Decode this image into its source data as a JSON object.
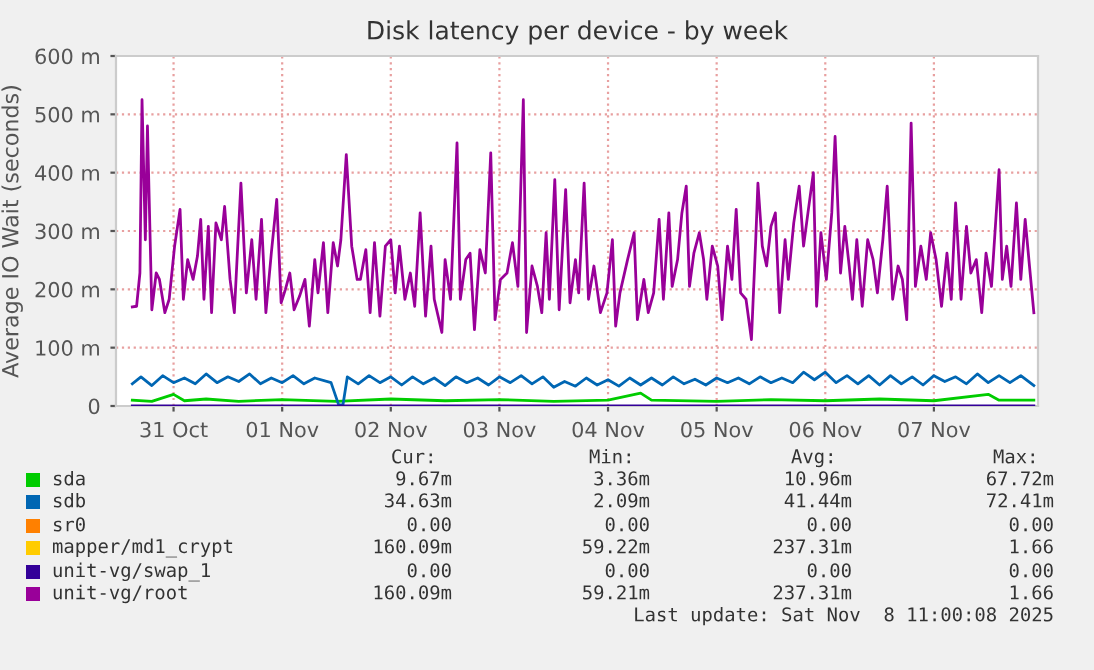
{
  "chart_data": {
    "type": "line",
    "title": "Disk latency per device - by week",
    "ylabel": "Average IO Wait (seconds)",
    "xlim": [
      "2025-10-30T23:17",
      "2025-11-08T11:00"
    ],
    "xticks": [
      {
        "value": "2025-10-31T12:00",
        "label": "31 Oct"
      },
      {
        "value": "2025-11-01T12:00",
        "label": "01 Nov"
      },
      {
        "value": "2025-11-02T12:00",
        "label": "02 Nov"
      },
      {
        "value": "2025-11-03T12:00",
        "label": "03 Nov"
      },
      {
        "value": "2025-11-04T12:00",
        "label": "04 Nov"
      },
      {
        "value": "2025-11-05T12:00",
        "label": "05 Nov"
      },
      {
        "value": "2025-11-06T12:00",
        "label": "06 Nov"
      },
      {
        "value": "2025-11-07T12:00",
        "label": "07 Nov"
      }
    ],
    "ylim": [
      0,
      600
    ],
    "yticks": [
      0,
      {
        "value": 100,
        "label": "100 m"
      },
      {
        "value": 200,
        "label": "200 m"
      },
      {
        "value": 300,
        "label": "300 m"
      },
      {
        "value": 400,
        "label": "400 m"
      },
      {
        "value": 500,
        "label": "500 m"
      },
      {
        "value": 600,
        "label": "600 m"
      }
    ],
    "grid": true,
    "legend": "bottom",
    "marker": "none",
    "line_style": "solid",
    "series": [
      {
        "name": "sda",
        "color": "#00cc00",
        "x": [
          "2025-10-31T02:53",
          "2025-10-31T07:12",
          "2025-10-31T12:00",
          "2025-10-31T14:24",
          "2025-10-31T19:12",
          "2025-11-01T02:24",
          "2025-11-01T12:00",
          "2025-11-02T00:00",
          "2025-11-02T12:00",
          "2025-11-03T00:00",
          "2025-11-03T12:00",
          "2025-11-04T00:00",
          "2025-11-04T12:00",
          "2025-11-04T19:12",
          "2025-11-04T21:36",
          "2025-11-05T12:00",
          "2025-11-06T00:00",
          "2025-11-06T12:00",
          "2025-11-07T00:00",
          "2025-11-07T12:00",
          "2025-11-08T00:00",
          "2025-11-08T02:24",
          "2025-11-08T10:05"
        ],
        "values": [
          10,
          8,
          20,
          9,
          12,
          8,
          11,
          8,
          12,
          9,
          11,
          8,
          10,
          22,
          10,
          8,
          11,
          9,
          12,
          9,
          20,
          10,
          10
        ]
      },
      {
        "name": "sdb",
        "color": "#0066b3",
        "x": [
          "2025-10-31T02:53",
          "2025-10-31T04:48",
          "2025-10-31T07:12",
          "2025-10-31T09:36",
          "2025-10-31T12:00",
          "2025-10-31T14:24",
          "2025-10-31T16:48",
          "2025-10-31T19:12",
          "2025-10-31T21:36",
          "2025-11-01T00:00",
          "2025-11-01T02:24",
          "2025-11-01T04:48",
          "2025-11-01T07:12",
          "2025-11-01T09:36",
          "2025-11-01T12:00",
          "2025-11-01T14:24",
          "2025-11-01T16:48",
          "2025-11-01T19:12",
          "2025-11-01T22:48",
          "2025-11-02T00:29",
          "2025-11-02T01:26",
          "2025-11-02T02:24",
          "2025-11-02T04:48",
          "2025-11-02T07:12",
          "2025-11-02T09:36",
          "2025-11-02T12:00",
          "2025-11-02T14:24",
          "2025-11-02T16:48",
          "2025-11-02T19:12",
          "2025-11-02T21:36",
          "2025-11-03T00:00",
          "2025-11-03T02:24",
          "2025-11-03T04:48",
          "2025-11-03T07:12",
          "2025-11-03T09:36",
          "2025-11-03T12:00",
          "2025-11-03T14:24",
          "2025-11-03T16:48",
          "2025-11-03T19:12",
          "2025-11-03T21:36",
          "2025-11-04T00:00",
          "2025-11-04T02:24",
          "2025-11-04T04:48",
          "2025-11-04T07:12",
          "2025-11-04T09:36",
          "2025-11-04T12:00",
          "2025-11-04T14:24",
          "2025-11-04T16:48",
          "2025-11-04T19:12",
          "2025-11-04T21:36",
          "2025-11-05T00:00",
          "2025-11-05T02:24",
          "2025-11-05T04:48",
          "2025-11-05T07:12",
          "2025-11-05T09:36",
          "2025-11-05T12:00",
          "2025-11-05T14:24",
          "2025-11-05T16:48",
          "2025-11-05T19:12",
          "2025-11-05T21:36",
          "2025-11-06T00:00",
          "2025-11-06T02:24",
          "2025-11-06T04:48",
          "2025-11-06T07:12",
          "2025-11-06T09:36",
          "2025-11-06T12:00",
          "2025-11-06T14:24",
          "2025-11-06T16:48",
          "2025-11-06T19:12",
          "2025-11-06T21:36",
          "2025-11-07T00:00",
          "2025-11-07T02:24",
          "2025-11-07T04:48",
          "2025-11-07T07:12",
          "2025-11-07T09:36",
          "2025-11-07T12:00",
          "2025-11-07T14:24",
          "2025-11-07T16:48",
          "2025-11-07T19:12",
          "2025-11-07T21:36",
          "2025-11-08T00:00",
          "2025-11-08T02:24",
          "2025-11-08T04:48",
          "2025-11-08T07:12",
          "2025-11-08T10:05"
        ],
        "values": [
          38,
          50,
          35,
          52,
          40,
          48,
          38,
          55,
          40,
          50,
          42,
          55,
          38,
          48,
          40,
          52,
          38,
          48,
          40,
          2,
          2,
          50,
          38,
          52,
          40,
          50,
          36,
          50,
          38,
          48,
          35,
          50,
          40,
          48,
          36,
          50,
          40,
          52,
          38,
          50,
          32,
          42,
          34,
          48,
          36,
          45,
          34,
          48,
          36,
          48,
          36,
          50,
          38,
          46,
          36,
          48,
          40,
          48,
          38,
          50,
          40,
          48,
          40,
          58,
          45,
          58,
          40,
          52,
          38,
          52,
          36,
          52,
          38,
          50,
          36,
          52,
          42,
          50,
          38,
          55,
          40,
          52,
          40,
          52,
          35
        ]
      },
      {
        "name": "sr0",
        "color": "#ff8000"
      },
      {
        "name": "mapper/md1_crypt",
        "color": "#ffcc00"
      },
      {
        "name": "unit-vg/swap_1",
        "color": "#330099",
        "x": [
          "2025-10-31T02:53",
          "2025-11-08T10:05"
        ],
        "values": [
          0,
          0
        ]
      },
      {
        "name": "unit-vg/root",
        "color": "#990099",
        "x": [
          "2025-10-31T02:53",
          "2025-10-31T03:50",
          "2025-10-31T04:34",
          "2025-10-31T05:02",
          "2025-10-31T05:46",
          "2025-10-31T06:14",
          "2025-10-31T07:12",
          "2025-10-31T08:10",
          "2025-10-31T08:53",
          "2025-10-31T10:05",
          "2025-10-31T11:02",
          "2025-10-31T12:14",
          "2025-10-31T13:26",
          "2025-10-31T14:10",
          "2025-10-31T15:07",
          "2025-10-31T16:19",
          "2025-10-31T17:17",
          "2025-10-31T18:00",
          "2025-10-31T18:43",
          "2025-10-31T19:41",
          "2025-10-31T20:24",
          "2025-10-31T21:22",
          "2025-10-31T22:34",
          "2025-10-31T23:17",
          "2025-11-01T00:29",
          "2025-11-01T01:26",
          "2025-11-01T02:53",
          "2025-11-01T04:05",
          "2025-11-01T05:17",
          "2025-11-01T06:14",
          "2025-11-01T07:26",
          "2025-11-01T08:24",
          "2025-11-01T09:36",
          "2025-11-01T10:48",
          "2025-11-01T11:46",
          "2025-11-01T12:43",
          "2025-11-01T13:41",
          "2025-11-01T14:38",
          "2025-11-01T15:50",
          "2025-11-01T17:02",
          "2025-11-01T18:00",
          "2025-11-01T19:12",
          "2025-11-01T19:55",
          "2025-11-01T21:07",
          "2025-11-01T22:05",
          "2025-11-01T23:17",
          "2025-11-02T00:14",
          "2025-11-02T00:58",
          "2025-11-02T02:10",
          "2025-11-02T03:22",
          "2025-11-02T04:34",
          "2025-11-02T05:17",
          "2025-11-02T06:29",
          "2025-11-02T07:26",
          "2025-11-02T08:24",
          "2025-11-02T09:36",
          "2025-11-02T10:48",
          "2025-11-02T12:00",
          "2025-11-02T12:58",
          "2025-11-02T13:55",
          "2025-11-02T15:07",
          "2025-11-02T16:19",
          "2025-11-02T17:17",
          "2025-11-02T18:29",
          "2025-11-02T19:41",
          "2025-11-02T20:53",
          "2025-11-02T21:36",
          "2025-11-02T23:17",
          "2025-11-03T00:00",
          "2025-11-03T01:12",
          "2025-11-03T02:38",
          "2025-11-03T03:22",
          "2025-11-03T04:34",
          "2025-11-03T05:31",
          "2025-11-03T06:29",
          "2025-11-03T07:41",
          "2025-11-03T08:53",
          "2025-11-03T10:05",
          "2025-11-03T11:02",
          "2025-11-03T12:14",
          "2025-11-03T13:41",
          "2025-11-03T14:53",
          "2025-11-03T16:05",
          "2025-11-03T17:17",
          "2025-11-03T18:00",
          "2025-11-03T19:12",
          "2025-11-03T20:24",
          "2025-11-03T21:22",
          "2025-11-03T22:19",
          "2025-11-03T23:02",
          "2025-11-04T00:14",
          "2025-11-04T01:12",
          "2025-11-04T02:38",
          "2025-11-04T03:36",
          "2025-11-04T04:48",
          "2025-11-04T05:31",
          "2025-11-04T06:43",
          "2025-11-04T07:41",
          "2025-11-04T08:53",
          "2025-11-04T10:19",
          "2025-11-04T11:46",
          "2025-11-04T12:58",
          "2025-11-04T13:41",
          "2025-11-04T14:38",
          "2025-11-04T16:19",
          "2025-11-04T17:46",
          "2025-11-04T18:29",
          "2025-11-04T19:55",
          "2025-11-04T20:53",
          "2025-11-04T22:05",
          "2025-11-04T23:17",
          "2025-11-05T00:14",
          "2025-11-05T01:26",
          "2025-11-05T02:10",
          "2025-11-05T03:22",
          "2025-11-05T04:19",
          "2025-11-05T05:17",
          "2025-11-05T06:00",
          "2025-11-05T06:58",
          "2025-11-05T08:10",
          "2025-11-05T09:07",
          "2025-11-05T09:50",
          "2025-11-05T11:02",
          "2025-11-05T12:14",
          "2025-11-05T13:12",
          "2025-11-05T14:24",
          "2025-11-05T15:22",
          "2025-11-05T16:19",
          "2025-11-05T17:17",
          "2025-11-05T18:29",
          "2025-11-05T19:41",
          "2025-11-05T20:38",
          "2025-11-05T21:07",
          "2025-11-05T22:05",
          "2025-11-05T23:02",
          "2025-11-06T00:00",
          "2025-11-06T00:58",
          "2025-11-06T01:55",
          "2025-11-06T03:07",
          "2025-11-06T03:50",
          "2025-11-06T05:02",
          "2025-11-06T06:14",
          "2025-11-06T07:12",
          "2025-11-06T08:10",
          "2025-11-06T09:22",
          "2025-11-06T10:05",
          "2025-11-06T11:02",
          "2025-11-06T12:14",
          "2025-11-06T13:26",
          "2025-11-06T14:10",
          "2025-11-06T15:22",
          "2025-11-06T16:19",
          "2025-11-06T17:17",
          "2025-11-06T18:00",
          "2025-11-06T18:58",
          "2025-11-06T20:10",
          "2025-11-06T21:22",
          "2025-11-06T22:34",
          "2025-11-06T23:31",
          "2025-11-07T00:43",
          "2025-11-07T01:41",
          "2025-11-07T02:53",
          "2025-11-07T04:05",
          "2025-11-07T05:02",
          "2025-11-07T06:00",
          "2025-11-07T06:58",
          "2025-11-07T07:55",
          "2025-11-07T09:07",
          "2025-11-07T10:19",
          "2025-11-07T11:17",
          "2025-11-07T12:29",
          "2025-11-07T13:41",
          "2025-11-07T14:53",
          "2025-11-07T15:50",
          "2025-11-07T16:48",
          "2025-11-07T18:00",
          "2025-11-07T19:12",
          "2025-11-07T20:10",
          "2025-11-07T21:22",
          "2025-11-07T22:34",
          "2025-11-07T23:31",
          "2025-11-08T00:43",
          "2025-11-08T02:24",
          "2025-11-08T03:07",
          "2025-11-08T04:05",
          "2025-11-08T05:02",
          "2025-11-08T06:14",
          "2025-11-08T07:12",
          "2025-11-08T08:10",
          "2025-11-08T09:07",
          "2025-11-08T10:05"
        ],
        "values": [
          170,
          171,
          228,
          525,
          285,
          480,
          165,
          228,
          217,
          160,
          183,
          274,
          337,
          183,
          251,
          217,
          257,
          320,
          183,
          308,
          160,
          314,
          285,
          342,
          217,
          160,
          382,
          194,
          285,
          183,
          320,
          160,
          262,
          354,
          177,
          200,
          228,
          165,
          188,
          217,
          137,
          251,
          194,
          280,
          160,
          280,
          240,
          285,
          431,
          274,
          217,
          217,
          268,
          160,
          280,
          154,
          274,
          285,
          194,
          274,
          183,
          228,
          171,
          331,
          154,
          274,
          183,
          126,
          251,
          183,
          451,
          183,
          251,
          262,
          131,
          268,
          228,
          434,
          148,
          217,
          228,
          280,
          205,
          525,
          126,
          240,
          205,
          160,
          297,
          183,
          388,
          165,
          371,
          177,
          251,
          194,
          382,
          183,
          240,
          160,
          194,
          285,
          137,
          194,
          251,
          297,
          148,
          217,
          160,
          194,
          320,
          183,
          331,
          205,
          251,
          331,
          377,
          205,
          262,
          297,
          251,
          183,
          274,
          240,
          148,
          274,
          217,
          337,
          194,
          183,
          114,
          285,
          382,
          274,
          240,
          308,
          331,
          160,
          285,
          217,
          314,
          377,
          274,
          331,
          400,
          171,
          297,
          217,
          331,
          462,
          228,
          308,
          240,
          183,
          285,
          171,
          285,
          251,
          194,
          285,
          377,
          183,
          240,
          217,
          148,
          485,
          205,
          274,
          217,
          297,
          251,
          171,
          262,
          183,
          348,
          183,
          308,
          228,
          251,
          160,
          262,
          205,
          405,
          217,
          274,
          205,
          348,
          217,
          320,
          240,
          160
        ]
      }
    ],
    "annotations": [
      "Cur:",
      "Min:",
      "Avg:",
      "Max:",
      "9.67m",
      "3.36m",
      "10.96m",
      "67.72m",
      "34.63m",
      "2.09m",
      "41.44m",
      "72.41m",
      "0.00",
      "0.00",
      "0.00",
      "0.00",
      "160.09m",
      "59.22m",
      "237.31m",
      "1.66",
      "0.00",
      "0.00",
      "0.00",
      "0.00",
      "160.09m",
      "59.21m",
      "237.31m",
      "1.66",
      "Last update: Sat Nov  8 11:00:08 2025"
    ]
  }
}
